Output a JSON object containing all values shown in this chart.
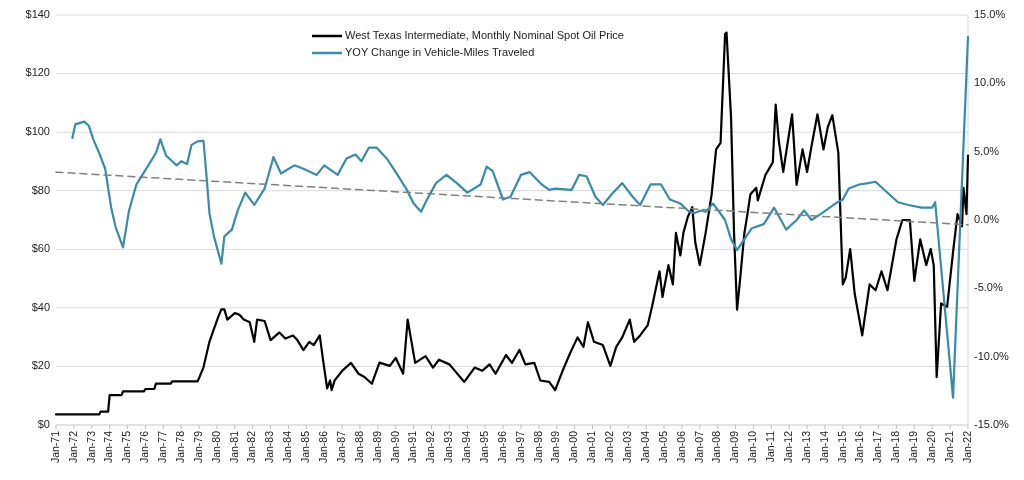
{
  "chart_data": {
    "type": "line",
    "legend": "top",
    "grid": "y",
    "xlim": [
      "1971-01",
      "2022-01"
    ],
    "xticks": [
      {
        "value": "1971-01",
        "label": "Jan-71"
      },
      {
        "value": "1972-01",
        "label": "Jan-72"
      },
      {
        "value": "1973-01",
        "label": "Jan-73"
      },
      {
        "value": "1974-01",
        "label": "Jan-74"
      },
      {
        "value": "1975-01",
        "label": "Jan-75"
      },
      {
        "value": "1976-01",
        "label": "Jan-76"
      },
      {
        "value": "1977-01",
        "label": "Jan-77"
      },
      {
        "value": "1978-01",
        "label": "Jan-78"
      },
      {
        "value": "1979-01",
        "label": "Jan-79"
      },
      {
        "value": "1980-01",
        "label": "Jan-80"
      },
      {
        "value": "1981-01",
        "label": "Jan-81"
      },
      {
        "value": "1982-01",
        "label": "Jan-82"
      },
      {
        "value": "1983-01",
        "label": "Jan-83"
      },
      {
        "value": "1984-01",
        "label": "Jan-84"
      },
      {
        "value": "1985-01",
        "label": "Jan-85"
      },
      {
        "value": "1986-01",
        "label": "Jan-86"
      },
      {
        "value": "1987-01",
        "label": "Jan-87"
      },
      {
        "value": "1988-01",
        "label": "Jan-88"
      },
      {
        "value": "1989-01",
        "label": "Jan-89"
      },
      {
        "value": "1990-01",
        "label": "Jan-90"
      },
      {
        "value": "1991-01",
        "label": "Jan-91"
      },
      {
        "value": "1992-01",
        "label": "Jan-92"
      },
      {
        "value": "1993-01",
        "label": "Jan-93"
      },
      {
        "value": "1994-01",
        "label": "Jan-94"
      },
      {
        "value": "1995-01",
        "label": "Jan-95"
      },
      {
        "value": "1996-01",
        "label": "Jan-96"
      },
      {
        "value": "1997-01",
        "label": "Jan-97"
      },
      {
        "value": "1998-01",
        "label": "Jan-98"
      },
      {
        "value": "1999-01",
        "label": "Jan-99"
      },
      {
        "value": "2000-01",
        "label": "Jan-00"
      },
      {
        "value": "2001-01",
        "label": "Jan-01"
      },
      {
        "value": "2002-01",
        "label": "Jan-02"
      },
      {
        "value": "2003-01",
        "label": "Jan-03"
      },
      {
        "value": "2004-01",
        "label": "Jan-04"
      },
      {
        "value": "2005-01",
        "label": "Jan-05"
      },
      {
        "value": "2006-01",
        "label": "Jan-06"
      },
      {
        "value": "2007-01",
        "label": "Jan-07"
      },
      {
        "value": "2008-01",
        "label": "Jan-08"
      },
      {
        "value": "2009-01",
        "label": "Jan-09"
      },
      {
        "value": "2010-01",
        "label": "Jan-10"
      },
      {
        "value": "2011-01",
        "label": "Jan-11"
      },
      {
        "value": "2012-01",
        "label": "Jan-12"
      },
      {
        "value": "2013-01",
        "label": "Jan-13"
      },
      {
        "value": "2014-01",
        "label": "Jan-14"
      },
      {
        "value": "2015-01",
        "label": "Jan-15"
      },
      {
        "value": "2016-01",
        "label": "Jan-16"
      },
      {
        "value": "2017-01",
        "label": "Jan-17"
      },
      {
        "value": "2018-01",
        "label": "Jan-18"
      },
      {
        "value": "2019-01",
        "label": "Jan-19"
      },
      {
        "value": "2020-01",
        "label": "Jan-20"
      },
      {
        "value": "2021-01",
        "label": "Jan-21"
      },
      {
        "value": "2022-01",
        "label": "Jan-22"
      }
    ],
    "ylim": [
      0,
      140
    ],
    "yticks": [
      {
        "value": 0,
        "label": "$0"
      },
      {
        "value": 20,
        "label": "$20"
      },
      {
        "value": 40,
        "label": "$40"
      },
      {
        "value": 60,
        "label": "$60"
      },
      {
        "value": 80,
        "label": "$80"
      },
      {
        "value": 100,
        "label": "$100"
      },
      {
        "value": 120,
        "label": "$120"
      },
      {
        "value": 140,
        "label": "$140"
      }
    ],
    "y2lim": [
      -15,
      15
    ],
    "y2ticks": [
      {
        "value": -15,
        "label": "-15.0%"
      },
      {
        "value": -10,
        "label": "-10.0%"
      },
      {
        "value": -5,
        "label": "-5.0%"
      },
      {
        "value": 0,
        "label": "0.0%"
      },
      {
        "value": 5,
        "label": "5.0%"
      },
      {
        "value": 10,
        "label": "10.0%"
      },
      {
        "value": 15,
        "label": "15.0%"
      }
    ],
    "series": [
      {
        "name": "West Texas Intermediate, Monthly Nominal Spot Oil Price",
        "color": "#000000",
        "x": [
          "1971-01",
          "1973-06",
          "1973-07",
          "1973-12",
          "1974-01",
          "1974-09",
          "1974-10",
          "1975-12",
          "1976-01",
          "1976-07",
          "1976-08",
          "1977-06",
          "1977-07",
          "1978-12",
          "1979-01",
          "1979-04",
          "1979-08",
          "1979-11",
          "1980-02",
          "1980-04",
          "1980-06",
          "1980-08",
          "1981-01",
          "1981-04",
          "1981-07",
          "1981-11",
          "1982-02",
          "1982-04",
          "1982-09",
          "1983-01",
          "1983-07",
          "1983-11",
          "1984-04",
          "1984-07",
          "1984-11",
          "1985-03",
          "1985-06",
          "1985-10",
          "1985-12",
          "1986-03",
          "1986-05",
          "1986-06",
          "1986-08",
          "1987-01",
          "1987-07",
          "1987-12",
          "1988-04",
          "1988-09",
          "1989-02",
          "1989-09",
          "1990-01",
          "1990-06",
          "1990-09",
          "1991-02",
          "1991-09",
          "1992-02",
          "1992-06",
          "1993-01",
          "1993-11",
          "1994-06",
          "1994-11",
          "1995-04",
          "1995-08",
          "1996-03",
          "1996-07",
          "1996-12",
          "1997-04",
          "1997-10",
          "1998-02",
          "1998-08",
          "1998-12",
          "1999-05",
          "1999-10",
          "2000-03",
          "2000-07",
          "2000-10",
          "2001-02",
          "2001-08",
          "2002-01",
          "2002-05",
          "2002-09",
          "2003-02",
          "2003-05",
          "2003-09",
          "2004-02",
          "2004-05",
          "2004-10",
          "2004-12",
          "2005-04",
          "2005-07",
          "2005-09",
          "2005-12",
          "2006-02",
          "2006-05",
          "2006-08",
          "2006-10",
          "2007-01",
          "2007-05",
          "2007-09",
          "2007-12",
          "2008-03",
          "2008-06",
          "2008-07",
          "2008-10",
          "2008-12",
          "2009-02",
          "2009-04",
          "2009-07",
          "2009-09",
          "2009-11",
          "2010-03",
          "2010-04",
          "2010-09",
          "2011-02",
          "2011-04",
          "2011-06",
          "2011-09",
          "2011-12",
          "2012-03",
          "2012-06",
          "2012-10",
          "2013-01",
          "2013-04",
          "2013-08",
          "2013-12",
          "2014-03",
          "2014-06",
          "2014-10",
          "2015-01",
          "2015-03",
          "2015-06",
          "2015-09",
          "2016-02",
          "2016-07",
          "2016-11",
          "2017-03",
          "2017-07",
          "2018-01",
          "2018-05",
          "2018-10",
          "2019-01",
          "2019-05",
          "2019-09",
          "2019-12",
          "2020-02",
          "2020-04",
          "2020-07",
          "2020-11",
          "2021-03",
          "2021-06",
          "2021-09",
          "2021-10",
          "2021-12",
          "2022-01"
        ],
        "values": [
          3.6,
          3.6,
          4.6,
          4.6,
          10.2,
          10.2,
          11.5,
          11.5,
          12.3,
          12.3,
          14.1,
          14.1,
          14.9,
          14.9,
          16,
          19.7,
          28.4,
          32.8,
          37.1,
          39.5,
          39.5,
          36,
          38.2,
          37.7,
          36,
          35.1,
          28.4,
          36,
          35.5,
          29,
          31.6,
          29.5,
          30.6,
          29,
          25.6,
          28.4,
          27.3,
          30.6,
          23,
          12.5,
          15.2,
          11.9,
          15.2,
          18.5,
          21.2,
          17.5,
          16.4,
          14.1,
          21.3,
          20.2,
          22.9,
          17.5,
          36,
          21.2,
          23.5,
          19.6,
          22.3,
          20.7,
          14.7,
          19.6,
          18.5,
          20.7,
          17.5,
          23.9,
          21.2,
          25.6,
          20.7,
          21.2,
          15.2,
          14.7,
          11.9,
          18.5,
          24.5,
          29.9,
          26.7,
          35.1,
          28.4,
          27.3,
          20.2,
          26.7,
          29.9,
          36,
          28.4,
          30.6,
          34,
          40.4,
          52.5,
          43.7,
          54.6,
          48,
          65.6,
          57.9,
          65.6,
          71,
          74.4,
          62.4,
          54.6,
          65.6,
          78.8,
          94.1,
          96.3,
          133.5,
          134,
          105,
          65.6,
          39.4,
          49.2,
          65.6,
          72,
          78.8,
          81,
          76.7,
          85.3,
          89.7,
          109.4,
          97.4,
          86.4,
          96.3,
          106.1,
          82,
          94.1,
          86.4,
          95.2,
          106.1,
          94.1,
          101.8,
          105.8,
          93,
          48,
          50.3,
          60.1,
          44.8,
          30.6,
          48,
          46,
          52.5,
          46,
          63.4,
          70,
          70,
          49.2,
          63.4,
          54.6,
          60.1,
          54.6,
          16.3,
          41.5,
          40.4,
          59,
          72,
          67.8,
          81,
          72,
          92
        ]
      },
      {
        "name": "YOY Change in Vehicle-Miles Traveled",
        "color": "#3a8ba6",
        "axis": "y2",
        "x": [
          "1971-12",
          "1972-02",
          "1972-08",
          "1972-11",
          "1973-02",
          "1973-06",
          "1973-10",
          "1974-02",
          "1974-05",
          "1974-10",
          "1975-02",
          "1975-07",
          "1975-11",
          "1976-03",
          "1976-08",
          "1976-11",
          "1977-03",
          "1977-10",
          "1978-01",
          "1978-05",
          "1978-08",
          "1978-12",
          "1979-04",
          "1979-06",
          "1979-08",
          "1979-11",
          "1980-04",
          "1980-06",
          "1980-11",
          "1981-03",
          "1981-08",
          "1982-02",
          "1982-09",
          "1983-03",
          "1983-08",
          "1984-05",
          "1984-11",
          "1985-08",
          "1986-01",
          "1986-10",
          "1987-04",
          "1987-10",
          "1988-02",
          "1988-07",
          "1988-12",
          "1989-07",
          "1990-01",
          "1990-08",
          "1991-01",
          "1991-06",
          "1991-10",
          "1992-04",
          "1992-11",
          "1993-06",
          "1994-01",
          "1994-10",
          "1995-02",
          "1995-06",
          "1996-01",
          "1996-06",
          "1997-01",
          "1997-07",
          "1998-03",
          "1998-08",
          "1998-12",
          "1999-11",
          "2000-04",
          "2000-09",
          "2001-03",
          "2001-08",
          "2002-02",
          "2002-09",
          "2003-04",
          "2003-09",
          "2004-04",
          "2004-11",
          "2005-05",
          "2005-12",
          "2006-05",
          "2006-09",
          "2007-02",
          "2007-05",
          "2007-10",
          "2008-06",
          "2008-10",
          "2009-02",
          "2009-07",
          "2009-12",
          "2010-08",
          "2011-03",
          "2011-11",
          "2012-06",
          "2012-11",
          "2013-04",
          "2013-11",
          "2014-08",
          "2015-01",
          "2015-05",
          "2015-12",
          "2016-06",
          "2016-11",
          "2017-05",
          "2018-02",
          "2018-09",
          "2019-06",
          "2020-01",
          "2020-03",
          "2021-03",
          "2022-01"
        ],
        "values": [
          6,
          7,
          7.2,
          6.9,
          5.9,
          4.9,
          3.75,
          0.9,
          -0.5,
          -2,
          0.7,
          2.6,
          3.3,
          4,
          4.9,
          5.9,
          4.7,
          4,
          4.3,
          4.1,
          5.5,
          5.75,
          5.8,
          3.3,
          0.5,
          -1.2,
          -3.2,
          -1.2,
          -0.7,
          0.7,
          2,
          1.1,
          2.3,
          4.6,
          3.4,
          4,
          3.75,
          3.3,
          4,
          3.3,
          4.5,
          4.8,
          4.3,
          5.3,
          5.3,
          4.5,
          3.5,
          2.3,
          1.2,
          0.6,
          1.5,
          2.7,
          3.3,
          2.7,
          2,
          2.6,
          3.9,
          3.6,
          1.5,
          1.7,
          3.3,
          3.5,
          2.6,
          2.2,
          2.3,
          2.2,
          3.3,
          3.2,
          1.7,
          1.1,
          1.9,
          2.7,
          1.7,
          1.1,
          2.6,
          2.6,
          1.5,
          1.2,
          0.7,
          0.5,
          0.7,
          0.6,
          1.2,
          0,
          -1.4,
          -2.2,
          -1.4,
          -0.6,
          -0.3,
          0.9,
          -0.7,
          0,
          0.7,
          0,
          0.5,
          1.2,
          1.5,
          2.3,
          2.6,
          2.7,
          2.8,
          2.2,
          1.3,
          1.1,
          0.9,
          0.9,
          1.3,
          -13,
          13.4
        ]
      },
      {
        "type": "line",
        "color": "#808080",
        "axis": "y2",
        "line_style": "dashed",
        "x": [
          "1971-01",
          "2022-01"
        ],
        "values": [
          3.5,
          -0.35
        ]
      }
    ]
  }
}
